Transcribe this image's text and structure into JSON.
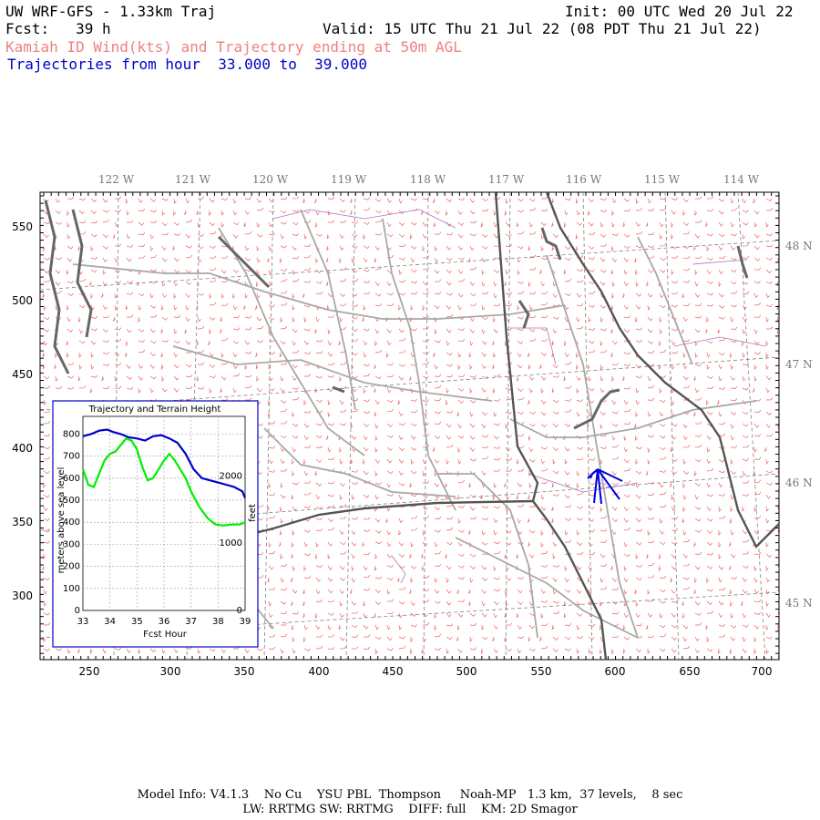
{
  "header": {
    "title": "UW WRF-GFS - 1.33km Traj",
    "init": "Init: 00 UTC Wed 20 Jul 22",
    "fcst_label": "Fcst:",
    "fcst_value": "39 h",
    "valid": "Valid: 15 UTC Thu 21 Jul 22 (08 PDT Thu 21 Jul 22)",
    "subtitle": "Kamiah ID Wind(kts) and Trajectory ending at 50m AGL",
    "traj_prefix": "Trajectories from hour",
    "traj_from": "33.000",
    "traj_to_word": "to",
    "traj_to": "39.000"
  },
  "map": {
    "lon_labels": [
      "122 W",
      "121 W",
      "120 W",
      "119 W",
      "118 W",
      "117 W",
      "116 W",
      "115 W",
      "114 W"
    ],
    "lat_labels": [
      "48 N",
      "47 N",
      "46 N",
      "45 N"
    ],
    "x_ticks": [
      "250",
      "300",
      "350",
      "400",
      "450",
      "500",
      "550",
      "600",
      "650",
      "700"
    ],
    "y_ticks": [
      "550",
      "500",
      "450",
      "400",
      "350",
      "300"
    ],
    "colors": {
      "wind_barbs": "#f06060",
      "roads": "#a8a8a8",
      "state_border": "#555555",
      "county": "#b070c0",
      "trajectory": "#0000dd",
      "water": "#666666"
    }
  },
  "inset": {
    "title": "Trajectory and Terrain Height",
    "ylabel_left": "meters above sea level",
    "ylabel_right": "feet",
    "xlabel": "Fcst Hour",
    "left_ticks": [
      "0",
      "100",
      "200",
      "300",
      "400",
      "500",
      "600",
      "700",
      "800"
    ],
    "right_ticks": [
      "0",
      "1000",
      "2000"
    ],
    "x_ticks": [
      "33",
      "34",
      "35",
      "36",
      "37",
      "38",
      "39"
    ]
  },
  "chart_data": {
    "type": "line",
    "title": "Trajectory and Terrain Height",
    "xlabel": "Fcst Hour",
    "ylabel": "meters above sea level",
    "xlim": [
      33,
      39
    ],
    "ylim": [
      0,
      880
    ],
    "series": [
      {
        "color": "#0000cc",
        "x": [
          33,
          33.3,
          33.6,
          33.9,
          34.1,
          34.4,
          34.7,
          35.0,
          35.3,
          35.6,
          35.9,
          36.2,
          36.5,
          36.8,
          37.1,
          37.4,
          37.7,
          38.0,
          38.3,
          38.6,
          38.9,
          39.0
        ],
        "values": [
          790,
          800,
          815,
          820,
          810,
          800,
          785,
          780,
          770,
          790,
          795,
          780,
          760,
          710,
          640,
          600,
          590,
          580,
          570,
          560,
          540,
          510
        ]
      },
      {
        "color": "#00ee00",
        "x": [
          33,
          33.2,
          33.4,
          33.6,
          33.8,
          34.0,
          34.2,
          34.4,
          34.6,
          34.8,
          35.0,
          35.2,
          35.4,
          35.6,
          35.8,
          36.0,
          36.2,
          36.4,
          36.6,
          36.8,
          37.0,
          37.3,
          37.6,
          37.9,
          38.2,
          38.5,
          38.8,
          39.0
        ],
        "values": [
          640,
          570,
          560,
          620,
          680,
          710,
          720,
          750,
          780,
          770,
          730,
          650,
          590,
          600,
          640,
          680,
          710,
          680,
          640,
          600,
          540,
          470,
          420,
          390,
          385,
          390,
          390,
          400
        ]
      }
    ]
  },
  "footer": {
    "line1": "Model Info: V4.1.3    No Cu    YSU PBL  Thompson     Noah-MP   1.3 km,  37 levels,    8 sec",
    "line2": "LW: RRTMG SW: RRTMG    DIFF: full    KM: 2D Smagor"
  }
}
